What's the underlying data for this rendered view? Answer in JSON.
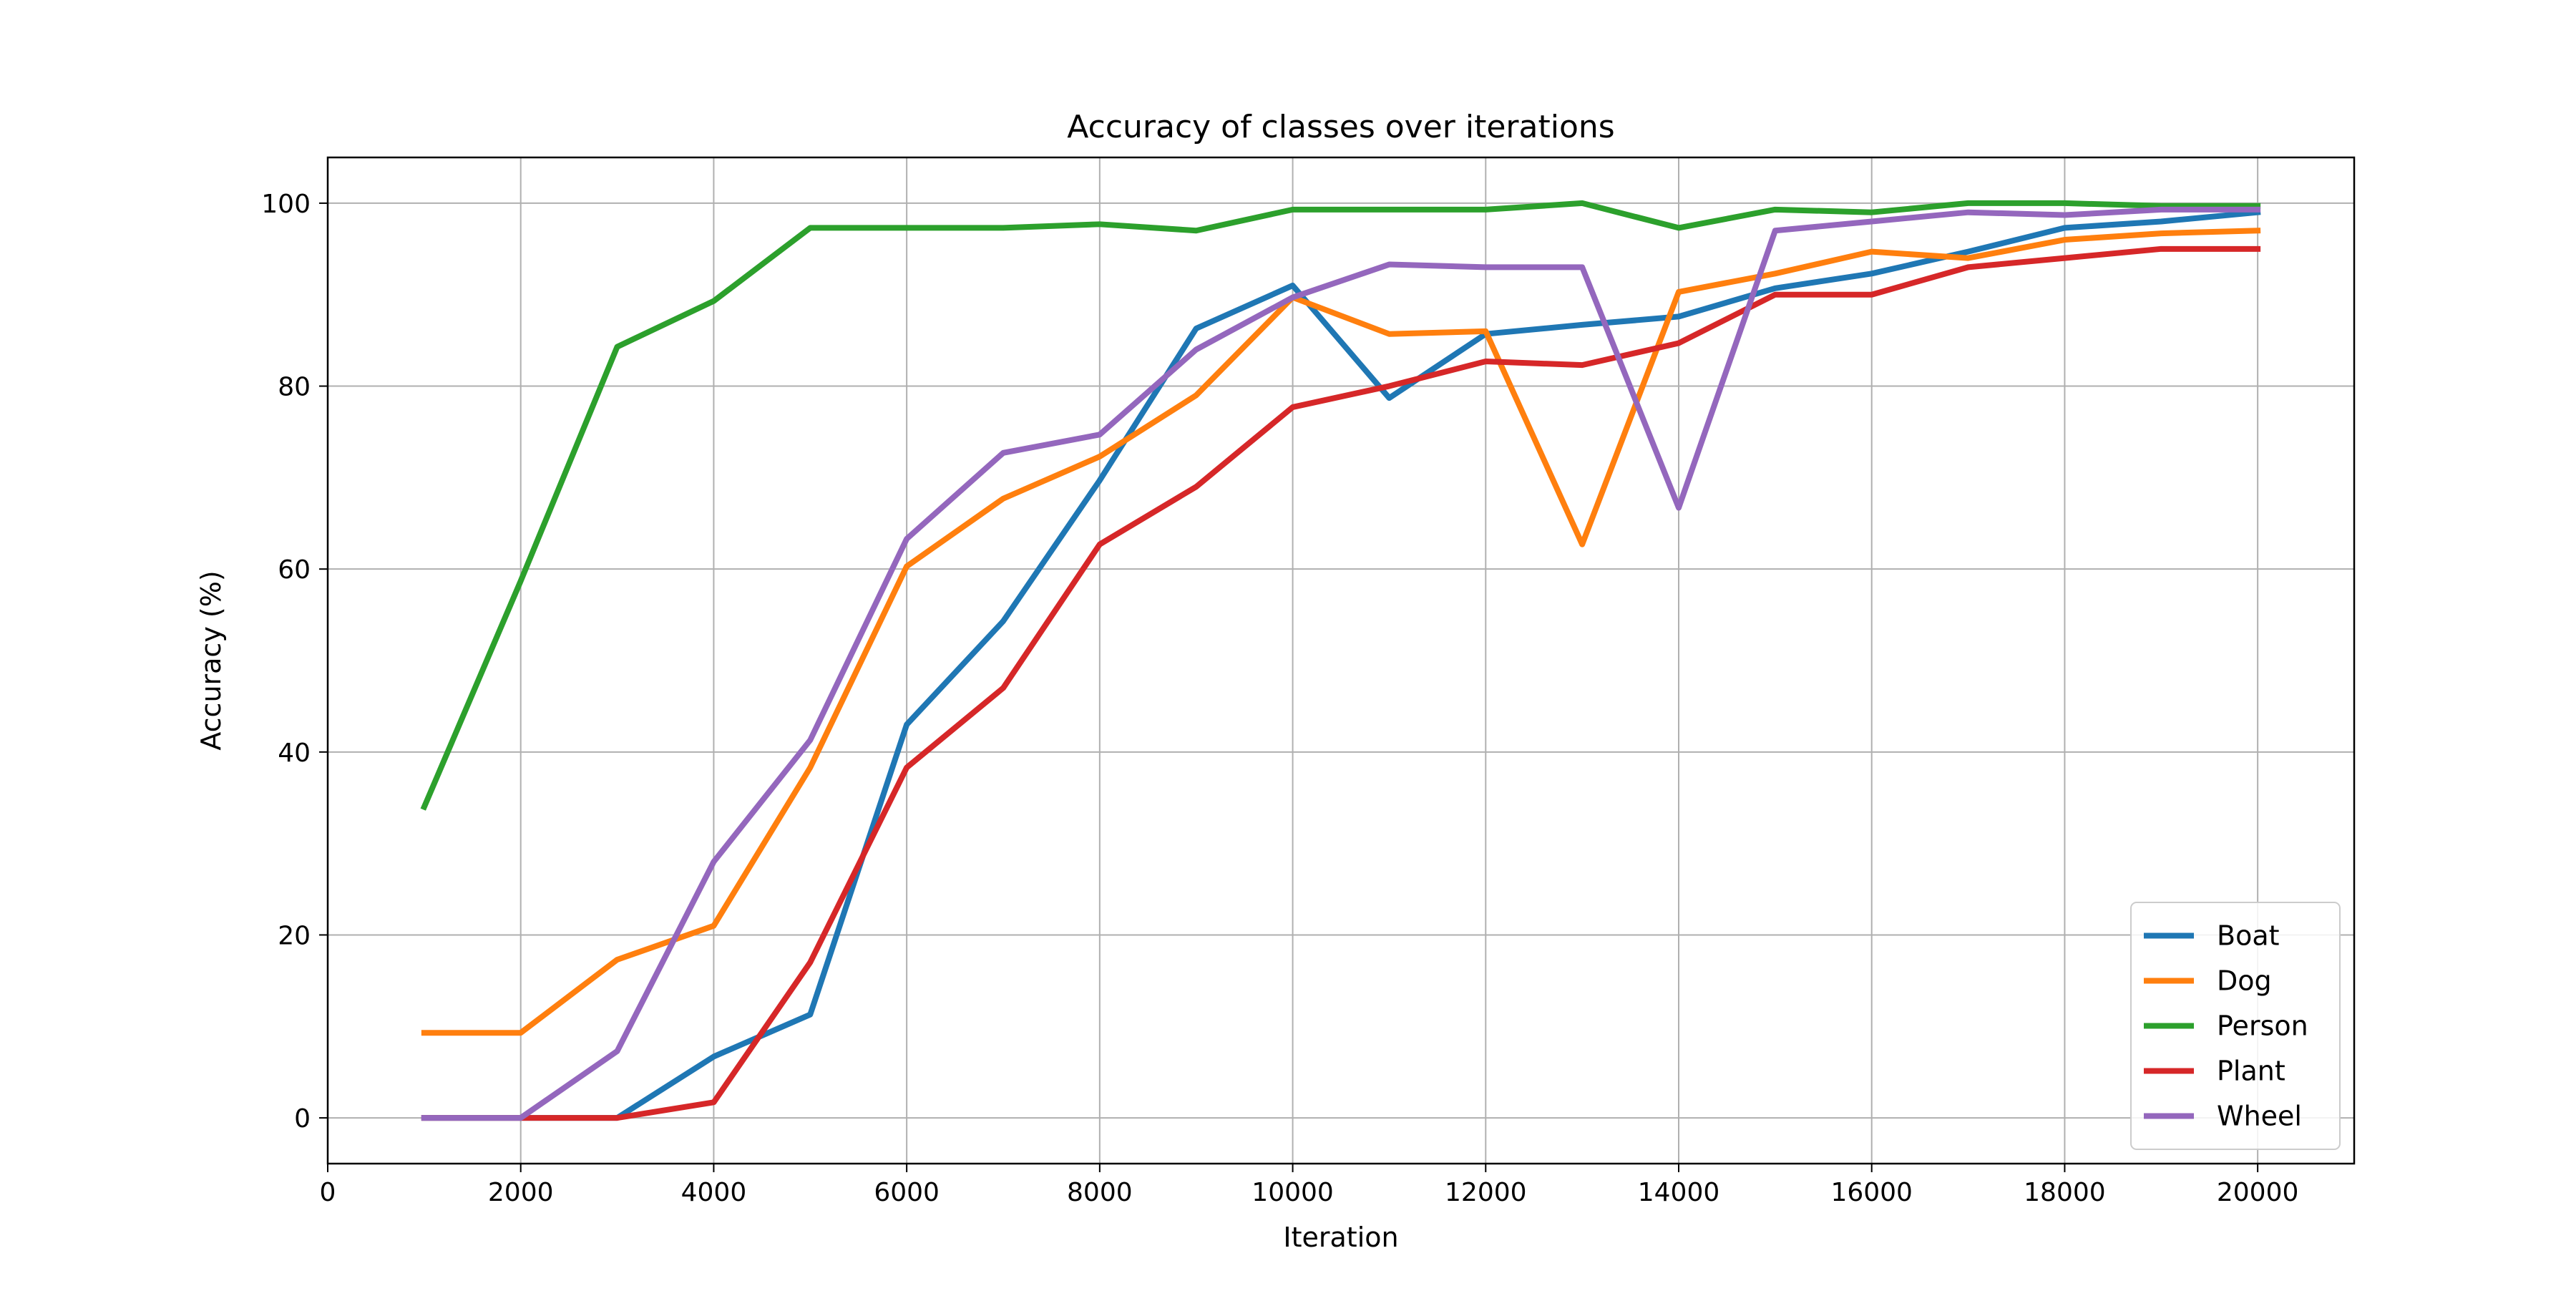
{
  "chart_data": {
    "type": "line",
    "title": "Accuracy of classes over iterations",
    "xlabel": "Iteration",
    "ylabel": "Accuracy (%)",
    "xlim": [
      0,
      21000
    ],
    "ylim": [
      -5,
      105
    ],
    "xticks": [
      0,
      2000,
      4000,
      6000,
      8000,
      10000,
      12000,
      14000,
      16000,
      18000,
      20000
    ],
    "yticks": [
      0,
      20,
      40,
      60,
      80,
      100
    ],
    "grid": true,
    "legend_position": "bottom-right",
    "x": [
      1000,
      2000,
      3000,
      4000,
      5000,
      6000,
      7000,
      8000,
      9000,
      10000,
      11000,
      12000,
      13000,
      14000,
      15000,
      16000,
      17000,
      18000,
      19000,
      20000
    ],
    "series": [
      {
        "name": "Boat",
        "color": "#1f77b4",
        "values": [
          0,
          0,
          0,
          6.7,
          11.3,
          43,
          54.3,
          69.7,
          86.3,
          91,
          78.7,
          85.7,
          86.7,
          87.6,
          90.7,
          92.3,
          94.7,
          97.3,
          98,
          99
        ]
      },
      {
        "name": "Dog",
        "color": "#ff7f0e",
        "values": [
          9.3,
          9.3,
          17.3,
          21,
          38.3,
          60.3,
          67.7,
          72.3,
          79,
          89.7,
          85.7,
          86,
          62.7,
          90.3,
          92.3,
          94.7,
          94,
          96,
          96.7,
          97
        ]
      },
      {
        "name": "Person",
        "color": "#2ca02c",
        "values": [
          34,
          58.7,
          84.3,
          89.3,
          97.3,
          97.3,
          97.3,
          97.7,
          97,
          99.3,
          99.3,
          99.3,
          100,
          97.3,
          99.3,
          99,
          100,
          100,
          99.7,
          99.7
        ]
      },
      {
        "name": "Plant",
        "color": "#d62728",
        "values": [
          0,
          0,
          0,
          1.7,
          17,
          38.3,
          47,
          62.7,
          69,
          77.7,
          80,
          82.7,
          82.3,
          84.7,
          90,
          90,
          93,
          94,
          95,
          95
        ]
      },
      {
        "name": "Wheel",
        "color": "#9467bd",
        "values": [
          0,
          0,
          7.3,
          28,
          41.3,
          63.3,
          72.7,
          74.7,
          84,
          89.7,
          93.3,
          93,
          93,
          66.7,
          97,
          98,
          99,
          98.7,
          99.3,
          99.3
        ]
      }
    ]
  }
}
